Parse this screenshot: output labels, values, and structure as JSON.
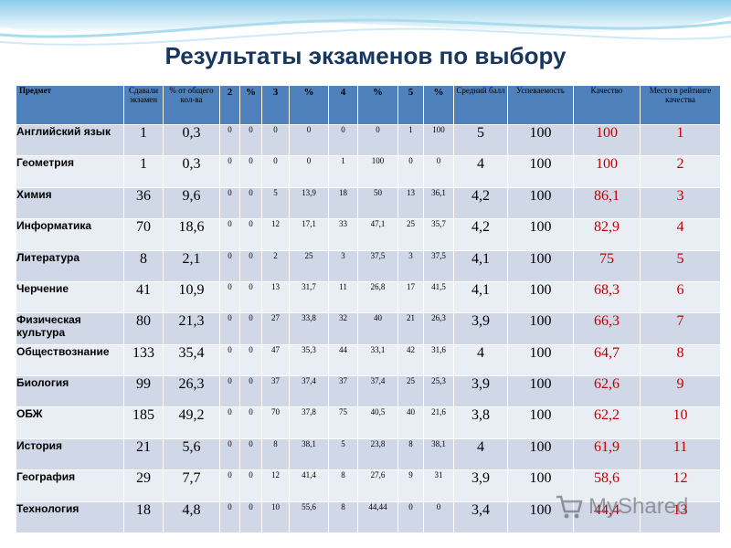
{
  "title": "Результаты экзаменов по выбору",
  "watermark": "MyShared",
  "colors": {
    "header_bg": "#4f81bd",
    "row_odd": "#d0d8e8",
    "row_even": "#e9edf4",
    "title": "#17375e",
    "quality_rank_text": "#c00000"
  },
  "headers": {
    "subject": "Предмет",
    "took": "Сдавали экзамен",
    "pct_total": "% от общего кол-ва",
    "g2": "2",
    "p2": "%",
    "g3": "3",
    "p3": "%",
    "g4": "4",
    "p4": "%",
    "g5": "5",
    "p5": "%",
    "avg": "Средний балл",
    "success": "Успеваемость",
    "quality": "Качество",
    "rank": "Место в рейтинге качества"
  },
  "rows": [
    {
      "subject": "Английский язык",
      "took": "1",
      "pct": "0,3",
      "g2": "0",
      "p2": "0",
      "g3": "0",
      "p3": "0",
      "g4": "0",
      "p4": "0",
      "g5": "1",
      "p5": "100",
      "avg": "5",
      "success": "100",
      "quality": "100",
      "rank": "1"
    },
    {
      "subject": "Геометрия",
      "took": "1",
      "pct": "0,3",
      "g2": "0",
      "p2": "0",
      "g3": "0",
      "p3": "0",
      "g4": "1",
      "p4": "100",
      "g5": "0",
      "p5": "0",
      "avg": "4",
      "success": "100",
      "quality": "100",
      "rank": "2"
    },
    {
      "subject": "Химия",
      "took": "36",
      "pct": "9,6",
      "g2": "0",
      "p2": "0",
      "g3": "5",
      "p3": "13,9",
      "g4": "18",
      "p4": "50",
      "g5": "13",
      "p5": "36,1",
      "avg": "4,2",
      "success": "100",
      "quality": "86,1",
      "rank": "3"
    },
    {
      "subject": "Информатика",
      "took": "70",
      "pct": "18,6",
      "g2": "0",
      "p2": "0",
      "g3": "12",
      "p3": "17,1",
      "g4": "33",
      "p4": "47,1",
      "g5": "25",
      "p5": "35,7",
      "avg": "4,2",
      "success": "100",
      "quality": "82,9",
      "rank": "4"
    },
    {
      "subject": "Литература",
      "took": "8",
      "pct": "2,1",
      "g2": "0",
      "p2": "0",
      "g3": "2",
      "p3": "25",
      "g4": "3",
      "p4": "37,5",
      "g5": "3",
      "p5": "37,5",
      "avg": "4,1",
      "success": "100",
      "quality": "75",
      "rank": "5"
    },
    {
      "subject": "Черчение",
      "took": "41",
      "pct": "10,9",
      "g2": "0",
      "p2": "0",
      "g3": "13",
      "p3": "31,7",
      "g4": "11",
      "p4": "26,8",
      "g5": "17",
      "p5": "41,5",
      "avg": "4,1",
      "success": "100",
      "quality": "68,3",
      "rank": "6"
    },
    {
      "subject": "Физическая культура",
      "took": "80",
      "pct": "21,3",
      "g2": "0",
      "p2": "0",
      "g3": "27",
      "p3": "33,8",
      "g4": "32",
      "p4": "40",
      "g5": "21",
      "p5": "26,3",
      "avg": "3,9",
      "success": "100",
      "quality": "66,3",
      "rank": "7"
    },
    {
      "subject": "Обществознание",
      "took": "133",
      "pct": "35,4",
      "g2": "0",
      "p2": "0",
      "g3": "47",
      "p3": "35,3",
      "g4": "44",
      "p4": "33,1",
      "g5": "42",
      "p5": "31,6",
      "avg": "4",
      "success": "100",
      "quality": "64,7",
      "rank": "8"
    },
    {
      "subject": "Биология",
      "took": "99",
      "pct": "26,3",
      "g2": "0",
      "p2": "0",
      "g3": "37",
      "p3": "37,4",
      "g4": "37",
      "p4": "37,4",
      "g5": "25",
      "p5": "25,3",
      "avg": "3,9",
      "success": "100",
      "quality": "62,6",
      "rank": "9"
    },
    {
      "subject": "ОБЖ",
      "took": "185",
      "pct": "49,2",
      "g2": "0",
      "p2": "0",
      "g3": "70",
      "p3": "37,8",
      "g4": "75",
      "p4": "40,5",
      "g5": "40",
      "p5": "21,6",
      "avg": "3,8",
      "success": "100",
      "quality": "62,2",
      "rank": "10"
    },
    {
      "subject": "История",
      "took": "21",
      "pct": "5,6",
      "g2": "0",
      "p2": "0",
      "g3": "8",
      "p3": "38,1",
      "g4": "5",
      "p4": "23,8",
      "g5": "8",
      "p5": "38,1",
      "avg": "4",
      "success": "100",
      "quality": "61,9",
      "rank": "11"
    },
    {
      "subject": "География",
      "took": "29",
      "pct": "7,7",
      "g2": "0",
      "p2": "0",
      "g3": "12",
      "p3": "41,4",
      "g4": "8",
      "p4": "27,6",
      "g5": "9",
      "p5": "31",
      "avg": "3,9",
      "success": "100",
      "quality": "58,6",
      "rank": "12"
    },
    {
      "subject": "Технология",
      "took": "18",
      "pct": "4,8",
      "g2": "0",
      "p2": "0",
      "g3": "10",
      "p3": "55,6",
      "g4": "8",
      "p4": "44,44",
      "g5": "0",
      "p5": "0",
      "avg": "3,4",
      "success": "100",
      "quality": "44,4",
      "rank": "13"
    }
  ]
}
